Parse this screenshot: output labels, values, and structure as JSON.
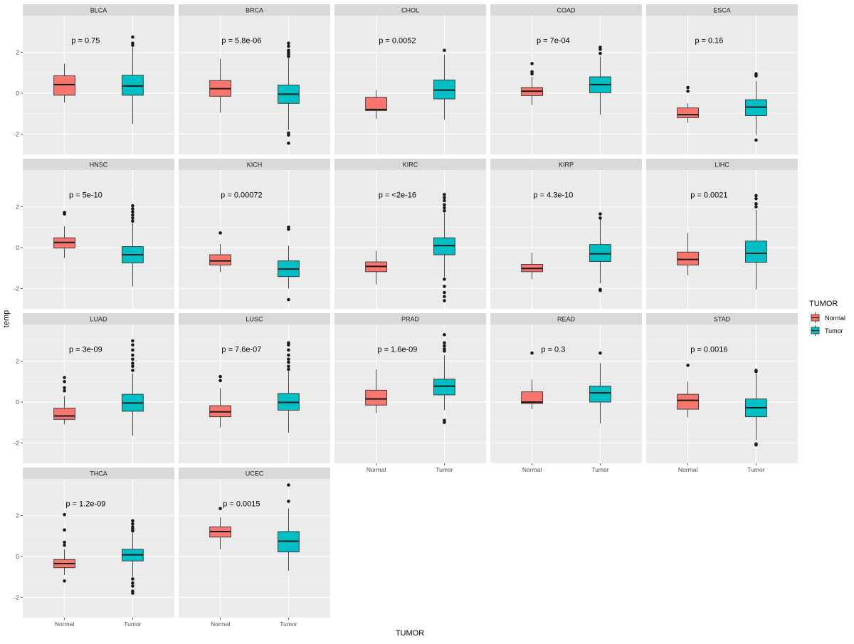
{
  "chart_data": {
    "type": "boxplot-facet",
    "xlabel": "TUMOR",
    "ylabel": "temp",
    "categories": [
      "Normal",
      "Tumor"
    ],
    "ylim": [
      -3,
      3.8
    ],
    "yticks": [
      -2,
      0,
      2
    ],
    "legend": {
      "title": "TUMOR",
      "placement": "right",
      "entries": [
        {
          "label": "Normal",
          "color": "#F8766D"
        },
        {
          "label": "Tumor",
          "color": "#00BFC4"
        }
      ]
    },
    "colors": {
      "panel_bg": "#EBEBEB",
      "strip_bg": "#D9D9D9",
      "grid": "#FFFFFF",
      "box_border": "#333333"
    },
    "panels": [
      {
        "name": "BLCA",
        "p": "p = 0.75",
        "boxes": [
          {
            "group": "Normal",
            "q1": -0.1,
            "median": 0.42,
            "q3": 0.85,
            "lo": -0.45,
            "hi": 1.45,
            "outliers": []
          },
          {
            "group": "Tumor",
            "q1": -0.1,
            "median": 0.35,
            "q3": 0.88,
            "lo": -1.5,
            "hi": 2.25,
            "outliers": [
              2.35,
              2.45,
              2.75
            ]
          }
        ]
      },
      {
        "name": "BRCA",
        "p": "p = 5.8e-06",
        "boxes": [
          {
            "group": "Normal",
            "q1": -0.15,
            "median": 0.22,
            "q3": 0.62,
            "lo": -0.95,
            "hi": 1.68,
            "outliers": []
          },
          {
            "group": "Tumor",
            "q1": -0.5,
            "median": -0.05,
            "q3": 0.4,
            "lo": -1.8,
            "hi": 1.7,
            "outliers": [
              1.8,
              1.9,
              2.0,
              2.1,
              2.3,
              2.45,
              -1.95,
              -2.05,
              -2.45
            ]
          }
        ]
      },
      {
        "name": "CHOL",
        "p": "p = 0.0052",
        "boxes": [
          {
            "group": "Normal",
            "q1": -0.85,
            "median": -0.8,
            "q3": -0.2,
            "lo": -1.25,
            "hi": 0.15,
            "outliers": []
          },
          {
            "group": "Tumor",
            "q1": -0.28,
            "median": 0.15,
            "q3": 0.65,
            "lo": -1.3,
            "hi": 1.9,
            "outliers": [
              2.1
            ]
          }
        ]
      },
      {
        "name": "COAD",
        "p": "p = 7e-04",
        "boxes": [
          {
            "group": "Normal",
            "q1": -0.12,
            "median": 0.1,
            "q3": 0.28,
            "lo": -0.58,
            "hi": 0.8,
            "outliers": [
              0.95,
              1.05,
              1.45
            ]
          },
          {
            "group": "Tumor",
            "q1": 0.02,
            "median": 0.42,
            "q3": 0.8,
            "lo": -1.05,
            "hi": 1.8,
            "outliers": [
              1.95,
              2.15,
              2.25
            ]
          }
        ]
      },
      {
        "name": "ESCA",
        "p": "p = 0.16",
        "boxes": [
          {
            "group": "Normal",
            "q1": -1.2,
            "median": -1.05,
            "q3": -0.72,
            "lo": -1.45,
            "hi": -0.5,
            "outliers": [
              0.1,
              0.28
            ]
          },
          {
            "group": "Tumor",
            "q1": -1.1,
            "median": -0.68,
            "q3": -0.32,
            "lo": -2.05,
            "hi": 0.6,
            "outliers": [
              0.85,
              0.95,
              -2.3
            ]
          }
        ]
      },
      {
        "name": "HNSC",
        "p": "p = 5e-10",
        "boxes": [
          {
            "group": "Normal",
            "q1": -0.02,
            "median": 0.25,
            "q3": 0.48,
            "lo": -0.52,
            "hi": 1.05,
            "outliers": [
              1.65,
              1.72
            ]
          },
          {
            "group": "Tumor",
            "q1": -0.75,
            "median": -0.35,
            "q3": 0.05,
            "lo": -1.9,
            "hi": 1.2,
            "outliers": [
              1.3,
              1.45,
              1.6,
              1.75,
              1.9,
              2.05
            ]
          }
        ]
      },
      {
        "name": "KICH",
        "p": "p = 0.00072",
        "boxes": [
          {
            "group": "Normal",
            "q1": -0.85,
            "median": -0.65,
            "q3": -0.35,
            "lo": -1.2,
            "hi": 0.18,
            "outliers": [
              0.72
            ]
          },
          {
            "group": "Tumor",
            "q1": -1.42,
            "median": -1.05,
            "q3": -0.65,
            "lo": -2.0,
            "hi": 0.1,
            "outliers": [
              0.9,
              1.0,
              -2.55
            ]
          }
        ]
      },
      {
        "name": "KIRC",
        "p": "p = <2e-16",
        "boxes": [
          {
            "group": "Normal",
            "q1": -1.18,
            "median": -0.92,
            "q3": -0.7,
            "lo": -1.8,
            "hi": -0.15,
            "outliers": []
          },
          {
            "group": "Tumor",
            "q1": -0.35,
            "median": 0.1,
            "q3": 0.48,
            "lo": -1.45,
            "hi": 1.7,
            "outliers": [
              1.8,
              1.95,
              2.1,
              2.3,
              2.45,
              2.6,
              -1.55,
              -1.9,
              -2.2,
              -2.4,
              -2.6
            ]
          }
        ]
      },
      {
        "name": "KIRP",
        "p": "p = 4.3e-10",
        "boxes": [
          {
            "group": "Normal",
            "q1": -1.18,
            "median": -1.02,
            "q3": -0.82,
            "lo": -1.55,
            "hi": -0.25,
            "outliers": []
          },
          {
            "group": "Tumor",
            "q1": -0.68,
            "median": -0.3,
            "q3": 0.15,
            "lo": -1.75,
            "hi": 1.4,
            "outliers": [
              1.45,
              1.65,
              -2.05,
              -2.1
            ]
          }
        ]
      },
      {
        "name": "LIHC",
        "p": "p = 0.0021",
        "boxes": [
          {
            "group": "Normal",
            "q1": -0.85,
            "median": -0.58,
            "q3": -0.22,
            "lo": -1.35,
            "hi": 0.72,
            "outliers": []
          },
          {
            "group": "Tumor",
            "q1": -0.72,
            "median": -0.28,
            "q3": 0.32,
            "lo": -2.05,
            "hi": 1.85,
            "outliers": [
              2.0,
              2.15,
              2.4,
              2.55
            ]
          }
        ]
      },
      {
        "name": "LUAD",
        "p": "p = 3e-09",
        "boxes": [
          {
            "group": "Normal",
            "q1": -0.85,
            "median": -0.68,
            "q3": -0.3,
            "lo": -1.1,
            "hi": 0.3,
            "outliers": [
              0.55,
              0.7,
              1.0,
              1.2
            ]
          },
          {
            "group": "Tumor",
            "q1": -0.45,
            "median": -0.05,
            "q3": 0.38,
            "lo": -1.65,
            "hi": 1.4,
            "outliers": [
              1.55,
              1.75,
              1.9,
              2.1,
              2.3,
              2.55,
              2.8,
              3.0
            ]
          }
        ]
      },
      {
        "name": "LUSC",
        "p": "p = 7.6e-07",
        "boxes": [
          {
            "group": "Normal",
            "q1": -0.72,
            "median": -0.48,
            "q3": -0.18,
            "lo": -1.25,
            "hi": 0.68,
            "outliers": [
              1.05,
              1.25
            ]
          },
          {
            "group": "Tumor",
            "q1": -0.4,
            "median": -0.02,
            "q3": 0.42,
            "lo": -1.5,
            "hi": 1.5,
            "outliers": [
              1.6,
              1.75,
              1.95,
              2.1,
              2.3,
              2.55,
              2.8,
              2.9
            ]
          }
        ]
      },
      {
        "name": "PRAD",
        "p": "p = 1.6e-09",
        "boxes": [
          {
            "group": "Normal",
            "q1": -0.15,
            "median": 0.15,
            "q3": 0.58,
            "lo": -0.55,
            "hi": 1.6,
            "outliers": []
          },
          {
            "group": "Tumor",
            "q1": 0.35,
            "median": 0.78,
            "q3": 1.12,
            "lo": -0.4,
            "hi": 2.3,
            "outliers": [
              2.5,
              2.6,
              2.75,
              2.9,
              3.3,
              -0.9,
              -1.0
            ]
          }
        ]
      },
      {
        "name": "READ",
        "p": "p = 0.3",
        "boxes": [
          {
            "group": "Normal",
            "q1": -0.08,
            "median": 0.0,
            "q3": 0.5,
            "lo": -0.35,
            "hi": 1.1,
            "outliers": [
              2.4
            ]
          },
          {
            "group": "Tumor",
            "q1": 0.0,
            "median": 0.45,
            "q3": 0.78,
            "lo": -1.05,
            "hi": 1.9,
            "outliers": [
              2.4
            ]
          }
        ]
      },
      {
        "name": "STAD",
        "p": "p = 0.0016",
        "boxes": [
          {
            "group": "Normal",
            "q1": -0.35,
            "median": 0.08,
            "q3": 0.38,
            "lo": -0.75,
            "hi": 1.0,
            "outliers": [
              1.8
            ]
          },
          {
            "group": "Tumor",
            "q1": -0.72,
            "median": -0.28,
            "q3": 0.15,
            "lo": -1.85,
            "hi": 1.4,
            "outliers": [
              1.5,
              1.55,
              -2.05,
              -2.1
            ]
          }
        ]
      },
      {
        "name": "THCA",
        "p": "p = 1.2e-09",
        "boxes": [
          {
            "group": "Normal",
            "q1": -0.55,
            "median": -0.35,
            "q3": -0.15,
            "lo": -0.9,
            "hi": 0.35,
            "outliers": [
              0.55,
              0.7,
              1.3,
              2.05,
              -1.2
            ]
          },
          {
            "group": "Tumor",
            "q1": -0.22,
            "median": 0.08,
            "q3": 0.35,
            "lo": -1.0,
            "hi": 1.15,
            "outliers": [
              1.25,
              1.35,
              1.45,
              1.6,
              1.75,
              -1.1,
              -1.3,
              -1.45,
              -1.7,
              -1.8
            ]
          }
        ]
      },
      {
        "name": "UCEC",
        "p": "p = 0.0015",
        "boxes": [
          {
            "group": "Normal",
            "q1": 0.95,
            "median": 1.22,
            "q3": 1.45,
            "lo": 0.35,
            "hi": 1.92,
            "outliers": [
              2.35
            ]
          },
          {
            "group": "Tumor",
            "q1": 0.22,
            "median": 0.75,
            "q3": 1.22,
            "lo": -0.7,
            "hi": 2.35,
            "outliers": [
              2.7,
              3.5
            ]
          }
        ]
      }
    ]
  }
}
